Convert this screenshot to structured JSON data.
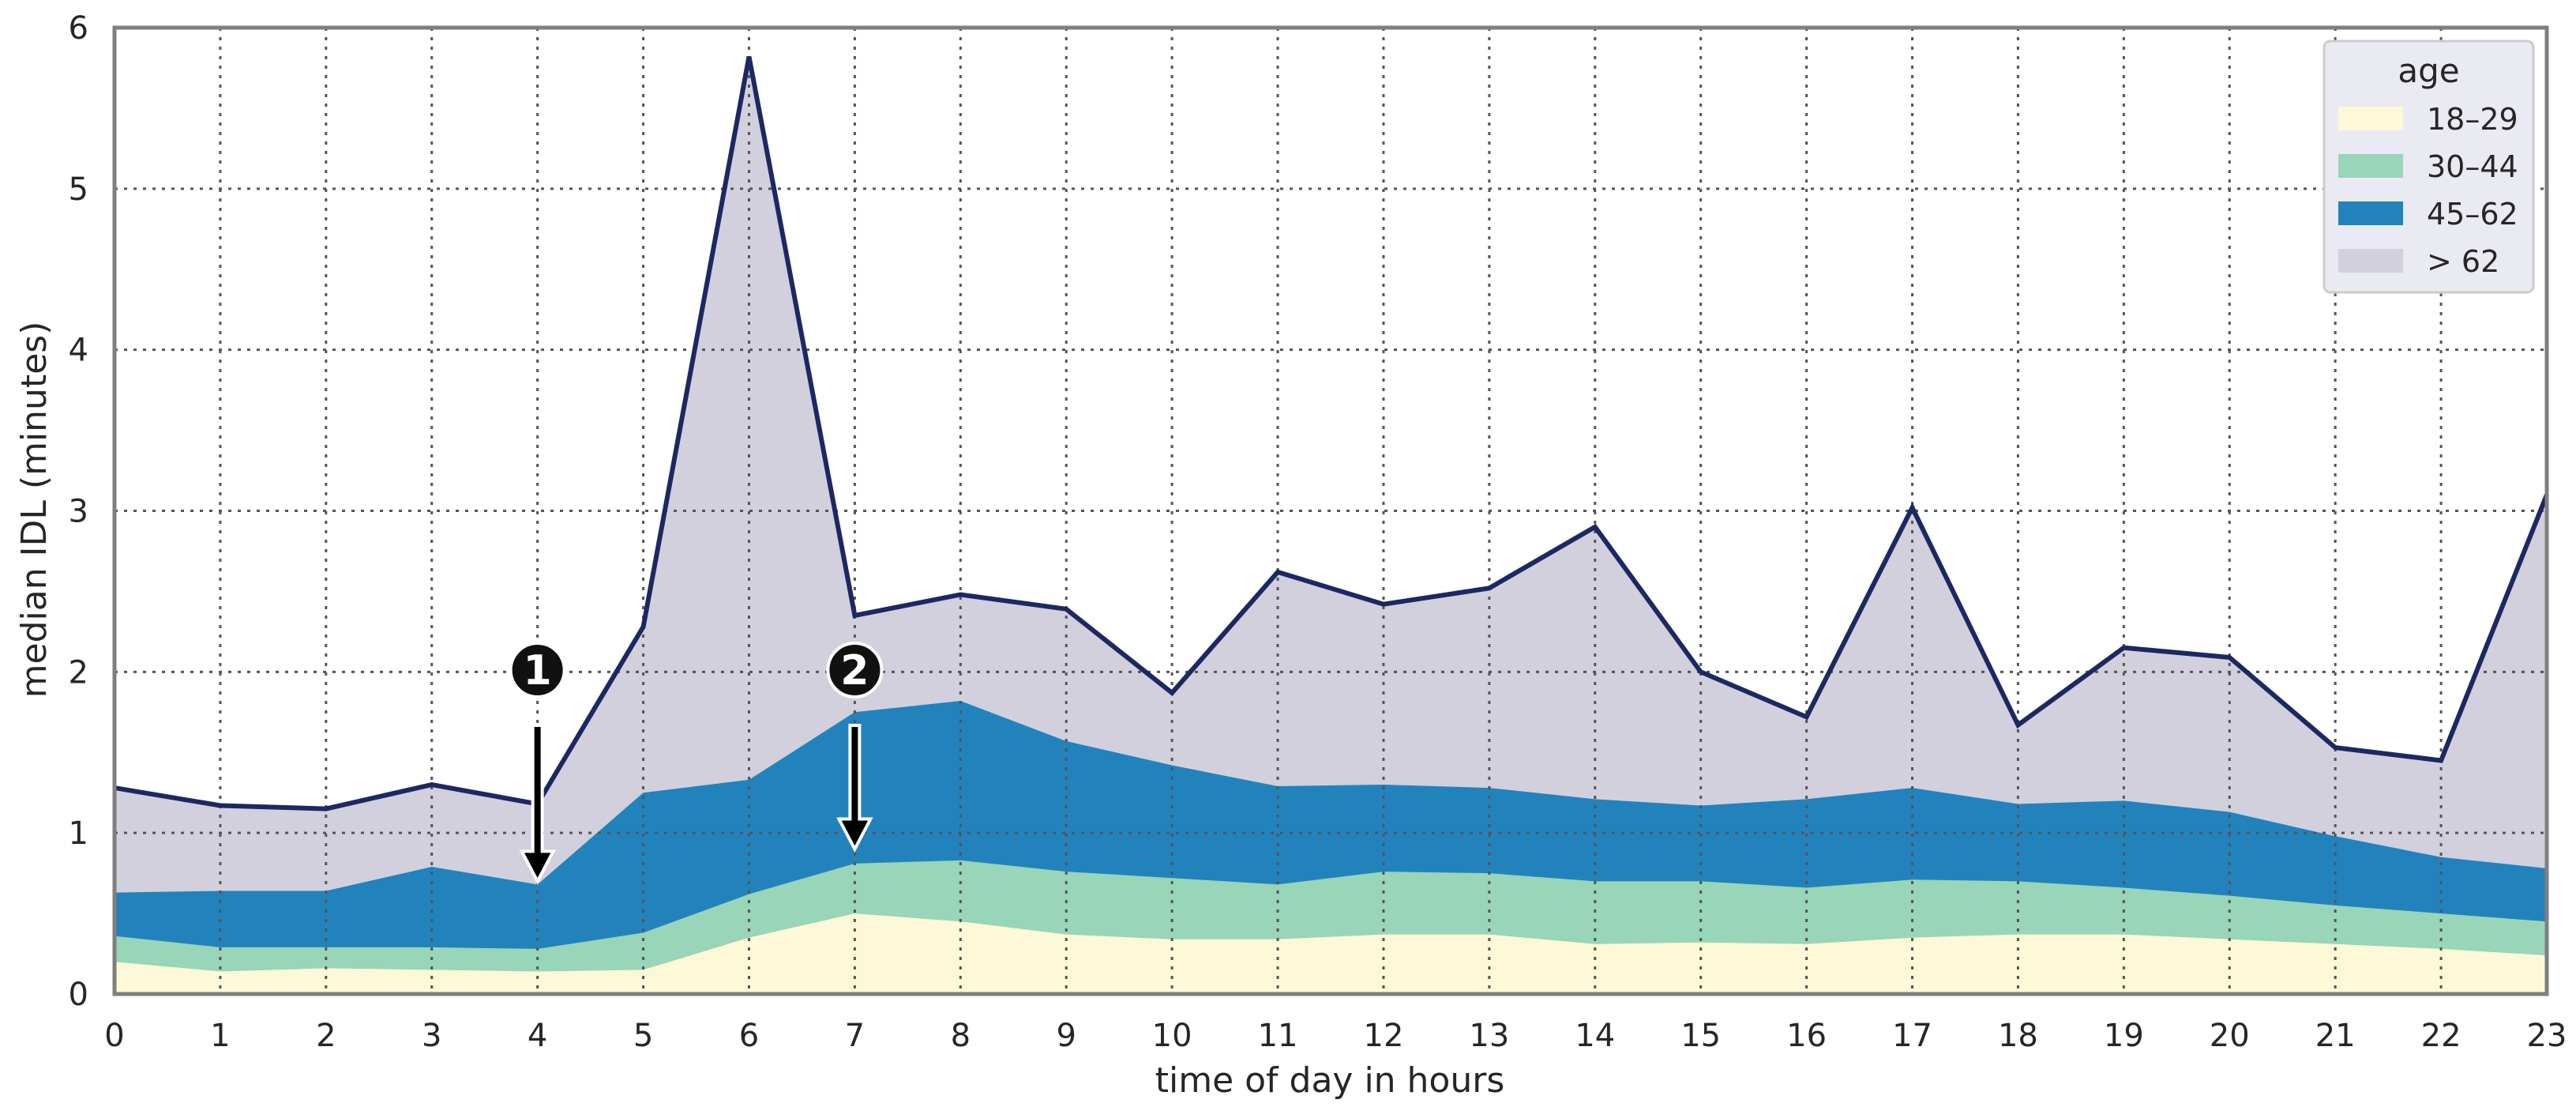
{
  "chart_data": {
    "type": "area",
    "stacked": false,
    "x": [
      0,
      1,
      2,
      3,
      4,
      5,
      6,
      7,
      8,
      9,
      10,
      11,
      12,
      13,
      14,
      15,
      16,
      17,
      18,
      19,
      20,
      21,
      22,
      23
    ],
    "xlabel": "time of day in hours",
    "ylabel": "median IDL (minutes)",
    "xlim": [
      0,
      23
    ],
    "ylim": [
      0,
      6
    ],
    "x_ticks": [
      "0",
      "1",
      "2",
      "3",
      "4",
      "5",
      "6",
      "7",
      "8",
      "9",
      "10",
      "11",
      "12",
      "13",
      "14",
      "15",
      "16",
      "17",
      "18",
      "19",
      "20",
      "21",
      "22",
      "23"
    ],
    "y_ticks": [
      "0",
      "1",
      "2",
      "3",
      "4",
      "5",
      "6"
    ],
    "grid": true,
    "legend": {
      "title": "age",
      "placement": "top-right"
    },
    "series": [
      {
        "name": "> 62",
        "color": "#1d2862",
        "fill": "#d2d0dd",
        "values": [
          1.28,
          1.17,
          1.15,
          1.3,
          1.18,
          2.28,
          5.82,
          2.35,
          2.48,
          2.39,
          1.87,
          2.62,
          2.42,
          2.52,
          2.9,
          2.0,
          1.72,
          3.02,
          1.67,
          2.15,
          2.09,
          1.53,
          1.45,
          3.1
        ]
      },
      {
        "name": "45–62",
        "color": "#2283bc",
        "fill": "#2283bc",
        "values": [
          0.63,
          0.64,
          0.64,
          0.79,
          0.68,
          1.25,
          1.33,
          1.75,
          1.82,
          1.57,
          1.42,
          1.29,
          1.3,
          1.28,
          1.21,
          1.17,
          1.21,
          1.28,
          1.18,
          1.2,
          1.13,
          0.98,
          0.85,
          0.78
        ]
      },
      {
        "name": "30–44",
        "color": "#98d5b9",
        "fill": "#98d5b9",
        "values": [
          0.36,
          0.29,
          0.29,
          0.29,
          0.28,
          0.38,
          0.62,
          0.81,
          0.83,
          0.76,
          0.72,
          0.68,
          0.76,
          0.75,
          0.7,
          0.7,
          0.66,
          0.71,
          0.7,
          0.66,
          0.61,
          0.55,
          0.5,
          0.45
        ]
      },
      {
        "name": "18–29",
        "color": "#fdf9d8",
        "fill": "#fdf9d8",
        "values": [
          0.2,
          0.14,
          0.16,
          0.15,
          0.14,
          0.15,
          0.35,
          0.5,
          0.45,
          0.37,
          0.34,
          0.34,
          0.37,
          0.37,
          0.31,
          0.32,
          0.31,
          0.35,
          0.37,
          0.37,
          0.34,
          0.31,
          0.28,
          0.24
        ]
      }
    ],
    "annotations": [
      {
        "label": "1",
        "x": 4,
        "arrow_to_y": 0.7
      },
      {
        "label": "2",
        "x": 7,
        "arrow_to_y": 0.9
      }
    ]
  }
}
